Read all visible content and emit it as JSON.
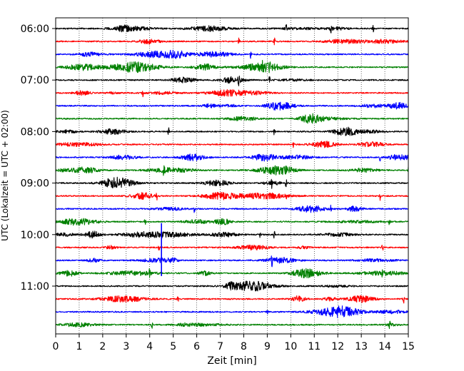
{
  "chart_data": {
    "type": "line",
    "xlabel": "Zeit  [min]",
    "ylabel": "UTC (Lokalzeit = UTC + 02:00)",
    "xlim": [
      0,
      15
    ],
    "x_ticks": [
      0,
      1,
      2,
      3,
      4,
      5,
      6,
      7,
      8,
      9,
      10,
      11,
      12,
      13,
      14,
      15
    ],
    "grid": "vertical dotted",
    "row_interval_minutes": 15,
    "start_time": "06:00",
    "y_tick_labels": [
      "06:00",
      "07:00",
      "08:00",
      "09:00",
      "10:00",
      "11:00"
    ],
    "y_tick_row_indices": [
      0,
      4,
      8,
      12,
      16,
      20
    ],
    "colors": [
      "#000000",
      "#ff0000",
      "#0000ff",
      "#008000"
    ],
    "series": [
      {
        "label": "06:00",
        "color": "#000000",
        "spikes_min": [
          9.8,
          11.7,
          13.5
        ]
      },
      {
        "label": "06:15",
        "color": "#ff0000",
        "spikes_min": [
          7.8,
          9.3
        ]
      },
      {
        "label": "06:30",
        "color": "#0000ff",
        "spikes_min": [
          8.3
        ]
      },
      {
        "label": "06:45",
        "color": "#008000",
        "spikes_min": [
          8.8,
          9.1
        ]
      },
      {
        "label": "07:00",
        "color": "#000000",
        "spikes_min": [
          7.8,
          9.1
        ]
      },
      {
        "label": "07:15",
        "color": "#ff0000",
        "spikes_min": [
          3.7
        ]
      },
      {
        "label": "07:30",
        "color": "#0000ff",
        "spikes_min": [
          9.3
        ]
      },
      {
        "label": "07:45",
        "color": "#008000",
        "spikes_min": []
      },
      {
        "label": "08:00",
        "color": "#000000",
        "spikes_min": [
          4.8,
          9.3
        ]
      },
      {
        "label": "08:15",
        "color": "#ff0000",
        "spikes_min": [
          10.1
        ]
      },
      {
        "label": "08:30",
        "color": "#0000ff",
        "spikes_min": [
          13.8
        ]
      },
      {
        "label": "08:45",
        "color": "#008000",
        "spikes_min": [
          4.6,
          15.0
        ]
      },
      {
        "label": "09:00",
        "color": "#000000",
        "spikes_min": [
          9.2,
          9.8
        ]
      },
      {
        "label": "09:15",
        "color": "#ff0000",
        "spikes_min": [
          4.3,
          9.8,
          13.8
        ]
      },
      {
        "label": "09:30",
        "color": "#0000ff",
        "spikes_min": [
          5.9,
          11.7
        ]
      },
      {
        "label": "09:45",
        "color": "#008000",
        "spikes_min": [
          3.8,
          14.2
        ]
      },
      {
        "label": "10:00",
        "color": "#000000",
        "spikes_min": [
          4.5,
          8.7,
          9.3
        ]
      },
      {
        "label": "10:15",
        "color": "#ff0000",
        "spikes_min": [
          4.4,
          13.9
        ]
      },
      {
        "label": "10:30",
        "color": "#0000ff",
        "spikes_min": [
          9.2
        ]
      },
      {
        "label": "10:45",
        "color": "#008000",
        "spikes_min": [
          4.0,
          13.9
        ]
      },
      {
        "label": "11:00",
        "color": "#000000",
        "spikes_min": [
          9.0
        ]
      },
      {
        "label": "11:15",
        "color": "#ff0000",
        "spikes_min": [
          5.2,
          14.8
        ]
      },
      {
        "label": "11:30",
        "color": "#0000ff",
        "spikes_min": [
          9.0
        ]
      },
      {
        "label": "11:45",
        "color": "#008000",
        "spikes_min": [
          4.1,
          14.2
        ]
      }
    ],
    "events": [
      {
        "row": 16,
        "x_min": 4.5,
        "span_rows": 4
      }
    ]
  }
}
